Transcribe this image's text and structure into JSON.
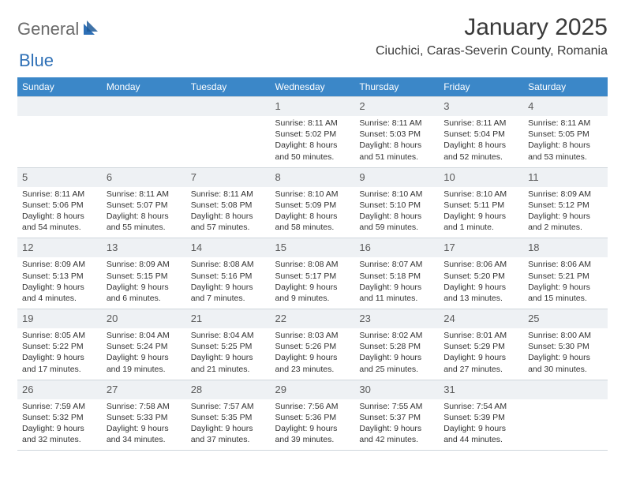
{
  "logo": {
    "text1": "General",
    "text2": "Blue"
  },
  "title": "January 2025",
  "location": "Ciuchici, Caras-Severin County, Romania",
  "colors": {
    "header_bg": "#3b87c8",
    "header_fg": "#ffffff",
    "daybar_bg": "#eef1f4",
    "rule": "#cfd6dc",
    "logo_gray": "#6a6a6a",
    "logo_blue": "#2d6fb6"
  },
  "weekdays": [
    "Sunday",
    "Monday",
    "Tuesday",
    "Wednesday",
    "Thursday",
    "Friday",
    "Saturday"
  ],
  "weeks": [
    [
      {
        "day": "",
        "sunrise": "",
        "sunset": "",
        "daylight": ""
      },
      {
        "day": "",
        "sunrise": "",
        "sunset": "",
        "daylight": ""
      },
      {
        "day": "",
        "sunrise": "",
        "sunset": "",
        "daylight": ""
      },
      {
        "day": "1",
        "sunrise": "Sunrise: 8:11 AM",
        "sunset": "Sunset: 5:02 PM",
        "daylight": "Daylight: 8 hours and 50 minutes."
      },
      {
        "day": "2",
        "sunrise": "Sunrise: 8:11 AM",
        "sunset": "Sunset: 5:03 PM",
        "daylight": "Daylight: 8 hours and 51 minutes."
      },
      {
        "day": "3",
        "sunrise": "Sunrise: 8:11 AM",
        "sunset": "Sunset: 5:04 PM",
        "daylight": "Daylight: 8 hours and 52 minutes."
      },
      {
        "day": "4",
        "sunrise": "Sunrise: 8:11 AM",
        "sunset": "Sunset: 5:05 PM",
        "daylight": "Daylight: 8 hours and 53 minutes."
      }
    ],
    [
      {
        "day": "5",
        "sunrise": "Sunrise: 8:11 AM",
        "sunset": "Sunset: 5:06 PM",
        "daylight": "Daylight: 8 hours and 54 minutes."
      },
      {
        "day": "6",
        "sunrise": "Sunrise: 8:11 AM",
        "sunset": "Sunset: 5:07 PM",
        "daylight": "Daylight: 8 hours and 55 minutes."
      },
      {
        "day": "7",
        "sunrise": "Sunrise: 8:11 AM",
        "sunset": "Sunset: 5:08 PM",
        "daylight": "Daylight: 8 hours and 57 minutes."
      },
      {
        "day": "8",
        "sunrise": "Sunrise: 8:10 AM",
        "sunset": "Sunset: 5:09 PM",
        "daylight": "Daylight: 8 hours and 58 minutes."
      },
      {
        "day": "9",
        "sunrise": "Sunrise: 8:10 AM",
        "sunset": "Sunset: 5:10 PM",
        "daylight": "Daylight: 8 hours and 59 minutes."
      },
      {
        "day": "10",
        "sunrise": "Sunrise: 8:10 AM",
        "sunset": "Sunset: 5:11 PM",
        "daylight": "Daylight: 9 hours and 1 minute."
      },
      {
        "day": "11",
        "sunrise": "Sunrise: 8:09 AM",
        "sunset": "Sunset: 5:12 PM",
        "daylight": "Daylight: 9 hours and 2 minutes."
      }
    ],
    [
      {
        "day": "12",
        "sunrise": "Sunrise: 8:09 AM",
        "sunset": "Sunset: 5:13 PM",
        "daylight": "Daylight: 9 hours and 4 minutes."
      },
      {
        "day": "13",
        "sunrise": "Sunrise: 8:09 AM",
        "sunset": "Sunset: 5:15 PM",
        "daylight": "Daylight: 9 hours and 6 minutes."
      },
      {
        "day": "14",
        "sunrise": "Sunrise: 8:08 AM",
        "sunset": "Sunset: 5:16 PM",
        "daylight": "Daylight: 9 hours and 7 minutes."
      },
      {
        "day": "15",
        "sunrise": "Sunrise: 8:08 AM",
        "sunset": "Sunset: 5:17 PM",
        "daylight": "Daylight: 9 hours and 9 minutes."
      },
      {
        "day": "16",
        "sunrise": "Sunrise: 8:07 AM",
        "sunset": "Sunset: 5:18 PM",
        "daylight": "Daylight: 9 hours and 11 minutes."
      },
      {
        "day": "17",
        "sunrise": "Sunrise: 8:06 AM",
        "sunset": "Sunset: 5:20 PM",
        "daylight": "Daylight: 9 hours and 13 minutes."
      },
      {
        "day": "18",
        "sunrise": "Sunrise: 8:06 AM",
        "sunset": "Sunset: 5:21 PM",
        "daylight": "Daylight: 9 hours and 15 minutes."
      }
    ],
    [
      {
        "day": "19",
        "sunrise": "Sunrise: 8:05 AM",
        "sunset": "Sunset: 5:22 PM",
        "daylight": "Daylight: 9 hours and 17 minutes."
      },
      {
        "day": "20",
        "sunrise": "Sunrise: 8:04 AM",
        "sunset": "Sunset: 5:24 PM",
        "daylight": "Daylight: 9 hours and 19 minutes."
      },
      {
        "day": "21",
        "sunrise": "Sunrise: 8:04 AM",
        "sunset": "Sunset: 5:25 PM",
        "daylight": "Daylight: 9 hours and 21 minutes."
      },
      {
        "day": "22",
        "sunrise": "Sunrise: 8:03 AM",
        "sunset": "Sunset: 5:26 PM",
        "daylight": "Daylight: 9 hours and 23 minutes."
      },
      {
        "day": "23",
        "sunrise": "Sunrise: 8:02 AM",
        "sunset": "Sunset: 5:28 PM",
        "daylight": "Daylight: 9 hours and 25 minutes."
      },
      {
        "day": "24",
        "sunrise": "Sunrise: 8:01 AM",
        "sunset": "Sunset: 5:29 PM",
        "daylight": "Daylight: 9 hours and 27 minutes."
      },
      {
        "day": "25",
        "sunrise": "Sunrise: 8:00 AM",
        "sunset": "Sunset: 5:30 PM",
        "daylight": "Daylight: 9 hours and 30 minutes."
      }
    ],
    [
      {
        "day": "26",
        "sunrise": "Sunrise: 7:59 AM",
        "sunset": "Sunset: 5:32 PM",
        "daylight": "Daylight: 9 hours and 32 minutes."
      },
      {
        "day": "27",
        "sunrise": "Sunrise: 7:58 AM",
        "sunset": "Sunset: 5:33 PM",
        "daylight": "Daylight: 9 hours and 34 minutes."
      },
      {
        "day": "28",
        "sunrise": "Sunrise: 7:57 AM",
        "sunset": "Sunset: 5:35 PM",
        "daylight": "Daylight: 9 hours and 37 minutes."
      },
      {
        "day": "29",
        "sunrise": "Sunrise: 7:56 AM",
        "sunset": "Sunset: 5:36 PM",
        "daylight": "Daylight: 9 hours and 39 minutes."
      },
      {
        "day": "30",
        "sunrise": "Sunrise: 7:55 AM",
        "sunset": "Sunset: 5:37 PM",
        "daylight": "Daylight: 9 hours and 42 minutes."
      },
      {
        "day": "31",
        "sunrise": "Sunrise: 7:54 AM",
        "sunset": "Sunset: 5:39 PM",
        "daylight": "Daylight: 9 hours and 44 minutes."
      },
      {
        "day": "",
        "sunrise": "",
        "sunset": "",
        "daylight": ""
      }
    ]
  ]
}
